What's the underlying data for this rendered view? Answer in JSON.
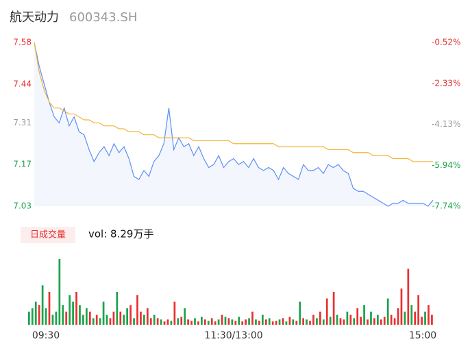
{
  "chart_data": {
    "type": "line",
    "title": "航天动力",
    "subtitle": "600343.SH",
    "series": [
      {
        "name": "price",
        "color": "#5b8ff9",
        "values": [
          7.58,
          7.5,
          7.44,
          7.38,
          7.33,
          7.31,
          7.36,
          7.3,
          7.33,
          7.28,
          7.27,
          7.22,
          7.18,
          7.21,
          7.23,
          7.2,
          7.24,
          7.21,
          7.23,
          7.19,
          7.13,
          7.12,
          7.15,
          7.13,
          7.18,
          7.2,
          7.24,
          7.36,
          7.22,
          7.26,
          7.23,
          7.24,
          7.2,
          7.23,
          7.19,
          7.16,
          7.17,
          7.2,
          7.16,
          7.18,
          7.19,
          7.17,
          7.18,
          7.16,
          7.19,
          7.16,
          7.15,
          7.16,
          7.15,
          7.12,
          7.16,
          7.14,
          7.13,
          7.12,
          7.17,
          7.15,
          7.15,
          7.16,
          7.14,
          7.17,
          7.16,
          7.17,
          7.15,
          7.14,
          7.09,
          7.08,
          7.08,
          7.07,
          7.06,
          7.05,
          7.04,
          7.03,
          7.04,
          7.04,
          7.05,
          7.04,
          7.04,
          7.04,
          7.04,
          7.03,
          7.05
        ]
      },
      {
        "name": "average",
        "color": "#f5b335",
        "values": [
          7.58,
          7.48,
          7.42,
          7.38,
          7.36,
          7.36,
          7.35,
          7.34,
          7.34,
          7.33,
          7.32,
          7.32,
          7.31,
          7.31,
          7.3,
          7.3,
          7.3,
          7.29,
          7.29,
          7.28,
          7.28,
          7.28,
          7.27,
          7.27,
          7.27,
          7.26,
          7.26,
          7.26,
          7.26,
          7.26,
          7.26,
          7.26,
          7.25,
          7.25,
          7.25,
          7.25,
          7.25,
          7.25,
          7.25,
          7.25,
          7.24,
          7.24,
          7.24,
          7.24,
          7.24,
          7.24,
          7.24,
          7.24,
          7.24,
          7.23,
          7.23,
          7.23,
          7.23,
          7.23,
          7.23,
          7.23,
          7.23,
          7.23,
          7.23,
          7.22,
          7.22,
          7.22,
          7.22,
          7.22,
          7.21,
          7.21,
          7.21,
          7.21,
          7.2,
          7.2,
          7.2,
          7.2,
          7.19,
          7.19,
          7.19,
          7.19,
          7.18,
          7.18,
          7.18,
          7.18,
          7.18
        ]
      }
    ],
    "ylim": [
      7.03,
      7.58
    ],
    "yticks": [
      7.58,
      7.44,
      7.31,
      7.17,
      7.03
    ],
    "ytick_colors": [
      "#e93030",
      "#e93030",
      "#999999",
      "#1aa34a",
      "#1aa34a"
    ],
    "y2lim": [
      -7.74,
      -0.52
    ],
    "y2ticks": [
      {
        "value": -0.52,
        "label": "-0.52%"
      },
      {
        "value": -2.33,
        "label": "-2.33%"
      },
      {
        "value": -4.13,
        "label": "-4.13%"
      },
      {
        "value": -5.94,
        "label": "-5.94%"
      },
      {
        "value": -7.74,
        "label": "-7.74%"
      }
    ],
    "xlim": [
      0,
      80
    ],
    "xticks": [
      {
        "value": 0,
        "label": "09:30"
      },
      {
        "value": 40,
        "label": "11:30/13:00"
      },
      {
        "value": 80,
        "label": "15:00"
      }
    ],
    "area_color": "#f3f6fd",
    "volume": {
      "legend": "日成交量",
      "label": "vol: 8.29万手",
      "up_color": "#e93030",
      "down_color": "#1aa34a",
      "values": [
        20,
        25,
        35,
        30,
        60,
        25,
        50,
        15,
        20,
        100,
        30,
        20,
        45,
        35,
        50,
        30,
        15,
        25,
        20,
        10,
        15,
        10,
        35,
        15,
        10,
        20,
        50,
        20,
        15,
        25,
        30,
        10,
        45,
        20,
        15,
        25,
        10,
        15,
        10,
        8,
        5,
        8,
        6,
        35,
        10,
        12,
        25,
        8,
        6,
        10,
        5,
        12,
        8,
        6,
        10,
        5,
        8,
        15,
        12,
        10,
        8,
        6,
        12,
        5,
        8,
        10,
        20,
        8,
        6,
        15,
        8,
        10,
        5,
        6,
        8,
        10,
        5,
        12,
        8,
        6,
        35,
        10,
        8,
        6,
        15,
        10,
        20,
        8,
        40,
        12,
        50,
        15,
        10,
        8,
        20,
        15,
        10,
        25,
        12,
        30,
        8,
        20,
        10,
        15,
        8,
        12,
        40,
        15,
        10,
        25,
        55,
        20,
        85,
        30,
        20,
        45,
        12,
        20,
        30,
        15
      ],
      "directions": "gggrggrggggrggrgggrgrgggrrgrggrgrrgrrgrgrrgrgrgrrgrgrgrrgrgrgrgrrgrgrgrgrrgrgrgrgrgrrgrgrgrgrrgrgrrgrgrgrrgrrrrgrgrrrgrr"
    }
  }
}
